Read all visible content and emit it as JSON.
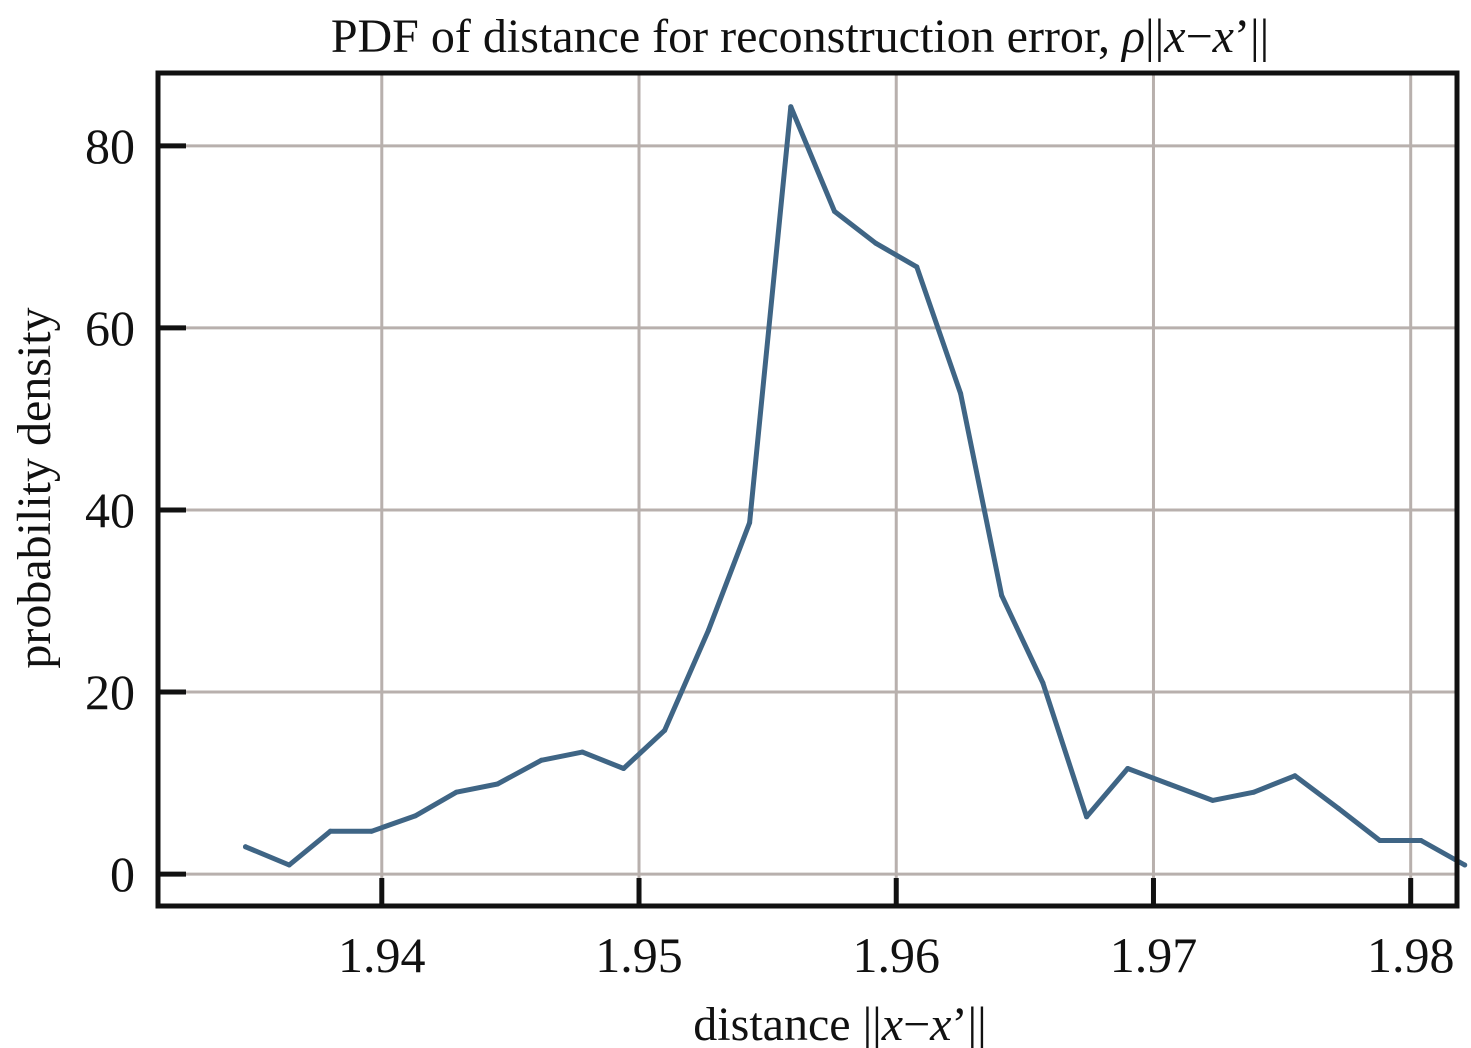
{
  "chart_data": {
    "type": "line",
    "title_parts": [
      {
        "text": "PDF of distance for reconstruction error, ",
        "italic": false
      },
      {
        "text": "ρ",
        "italic": true
      },
      {
        "text": "||",
        "italic": false
      },
      {
        "text": "x",
        "italic": true
      },
      {
        "text": "−",
        "italic": false
      },
      {
        "text": "x",
        "italic": true
      },
      {
        "text": "’||",
        "italic": false
      }
    ],
    "xlabel_parts": [
      {
        "text": "distance ||",
        "italic": false
      },
      {
        "text": "x",
        "italic": true
      },
      {
        "text": "−",
        "italic": false
      },
      {
        "text": "x",
        "italic": true
      },
      {
        "text": "’||",
        "italic": false
      }
    ],
    "ylabel": "probability density",
    "xlim": [
      1.9313,
      1.9818
    ],
    "ylim": [
      -3.5,
      88
    ],
    "xticks": [
      1.94,
      1.95,
      1.96,
      1.97,
      1.98
    ],
    "xtick_labels": [
      "1.94",
      "1.95",
      "1.96",
      "1.97",
      "1.98"
    ],
    "yticks": [
      0,
      20,
      40,
      60,
      80
    ],
    "ytick_labels": [
      "0",
      "20",
      "40",
      "60",
      "80"
    ],
    "grid": true,
    "line_color": "#3f6585",
    "grid_color": "#b8b0ad",
    "series": [
      {
        "x": [
          1.9347,
          1.9364,
          1.938,
          1.9396,
          1.9413,
          1.9429,
          1.9445,
          1.9462,
          1.9478,
          1.9494,
          1.951,
          1.9527,
          1.9543,
          1.9559,
          1.9576,
          1.9592,
          1.9608,
          1.9625,
          1.9641,
          1.9657,
          1.9674,
          1.969,
          1.9706,
          1.9723,
          1.9739,
          1.9755,
          1.9772,
          1.9788,
          1.9804,
          1.9821
        ],
        "values": [
          3.0,
          1.0,
          4.7,
          4.7,
          6.4,
          9.0,
          9.9,
          12.5,
          13.4,
          11.6,
          15.8,
          26.8,
          38.6,
          84.3,
          72.8,
          69.3,
          66.7,
          52.8,
          30.6,
          21.0,
          6.3,
          11.6,
          9.9,
          8.1,
          9.0,
          10.8,
          7.2,
          3.7,
          3.7,
          1.0
        ]
      }
    ]
  }
}
